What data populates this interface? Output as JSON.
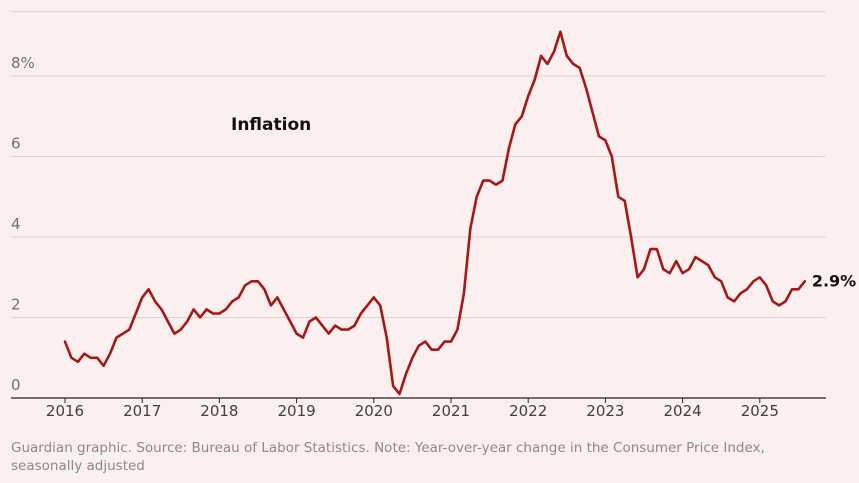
{
  "chart_data": {
    "type": "line",
    "title": "Inflation",
    "xlabel": "",
    "ylabel": "",
    "ylim": [
      0,
      9.5
    ],
    "grid": true,
    "y_ticks": [
      {
        "value": 0,
        "label": "0"
      },
      {
        "value": 2,
        "label": "2"
      },
      {
        "value": 4,
        "label": "4"
      },
      {
        "value": 6,
        "label": "6"
      },
      {
        "value": 8,
        "label": "8%"
      }
    ],
    "x_ticks": [
      "2016",
      "2017",
      "2018",
      "2019",
      "2020",
      "2021",
      "2022",
      "2023",
      "2024",
      "2025"
    ],
    "line_color": "#a51818",
    "start": "2016-01",
    "series": [
      {
        "name": "Inflation",
        "values": [
          1.4,
          1.0,
          0.9,
          1.1,
          1.0,
          1.0,
          0.8,
          1.1,
          1.5,
          1.6,
          1.7,
          2.1,
          2.5,
          2.7,
          2.4,
          2.2,
          1.9,
          1.6,
          1.7,
          1.9,
          2.2,
          2.0,
          2.2,
          2.1,
          2.1,
          2.2,
          2.4,
          2.5,
          2.8,
          2.9,
          2.9,
          2.7,
          2.3,
          2.5,
          2.2,
          1.9,
          1.6,
          1.5,
          1.9,
          2.0,
          1.8,
          1.6,
          1.8,
          1.7,
          1.7,
          1.8,
          2.1,
          2.3,
          2.5,
          2.3,
          1.5,
          0.3,
          0.1,
          0.6,
          1.0,
          1.3,
          1.4,
          1.2,
          1.2,
          1.4,
          1.4,
          1.7,
          2.6,
          4.2,
          5.0,
          5.4,
          5.4,
          5.3,
          5.4,
          6.2,
          6.8,
          7.0,
          7.5,
          7.9,
          8.5,
          8.3,
          8.6,
          9.1,
          8.5,
          8.3,
          8.2,
          7.7,
          7.1,
          6.5,
          6.4,
          6.0,
          5.0,
          4.9,
          4.0,
          3.0,
          3.2,
          3.7,
          3.7,
          3.2,
          3.1,
          3.4,
          3.1,
          3.2,
          3.5,
          3.4,
          3.3,
          3.0,
          2.9,
          2.5,
          2.4,
          2.6,
          2.7,
          2.9,
          3.0,
          2.8,
          2.4,
          2.3,
          2.4,
          2.7,
          2.7,
          2.9
        ]
      }
    ],
    "end_label": "2.9%"
  },
  "footer": {
    "source": "Guardian graphic. Source: Bureau of Labor Statistics. Note: Year-over-year change in the Consumer Price Index, seasonally adjusted"
  }
}
